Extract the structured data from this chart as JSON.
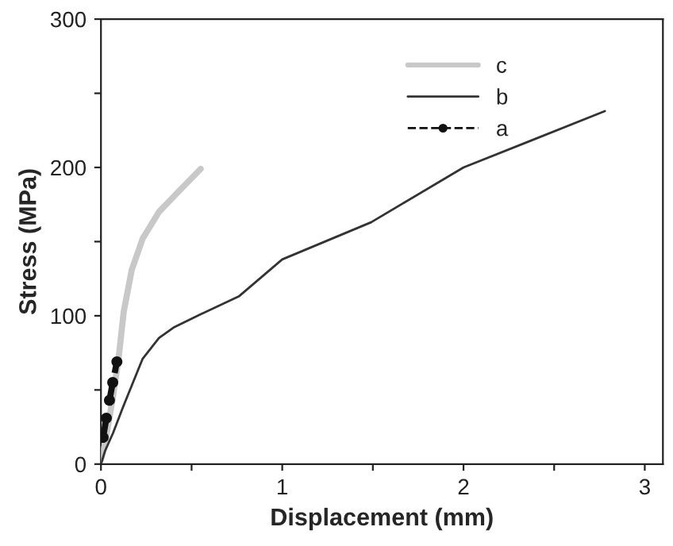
{
  "chart_data": {
    "type": "line",
    "xlabel": "Displacement (mm)",
    "ylabel": "Stress (MPa)",
    "xlim": [
      0,
      3.1
    ],
    "xticks": [
      0,
      {
        "value": 0.5,
        "label": null
      },
      1,
      {
        "value": 1.5,
        "label": null
      },
      2,
      {
        "value": 2.5,
        "label": null
      },
      3
    ],
    "ylim": [
      0,
      300
    ],
    "yticks": [
      0,
      {
        "value": 50,
        "label": null
      },
      100,
      {
        "value": 150,
        "label": null
      },
      200,
      {
        "value": 250,
        "label": null
      },
      300
    ],
    "grid": false,
    "legend": "top right",
    "series": [
      {
        "name": "c",
        "color": "#c8c8c8",
        "line_style": "solid",
        "x": [
          0,
          0.023,
          0.067,
          0.097,
          0.126,
          0.17,
          0.23,
          0.32,
          0.43,
          0.55
        ],
        "values": [
          3,
          14,
          46,
          71,
          103,
          131,
          152,
          170,
          184,
          199
        ]
      },
      {
        "name": "b",
        "color": "#333333",
        "line_style": "solid",
        "x": [
          0,
          0.023,
          0.067,
          0.117,
          0.17,
          0.23,
          0.32,
          0.4,
          0.55,
          0.76,
          1.0,
          1.49,
          2.0,
          2.37,
          2.78
        ],
        "values": [
          0,
          9,
          21,
          37,
          53,
          71,
          85,
          92,
          101,
          113,
          138,
          163,
          200,
          218,
          238
        ]
      },
      {
        "name": "a",
        "color": "#111111",
        "line_style": "dashed",
        "marker": "circle",
        "x": [
          0.012,
          0.03,
          0.047,
          0.065,
          0.088
        ],
        "values": [
          18,
          31,
          43,
          55,
          69
        ]
      }
    ]
  }
}
